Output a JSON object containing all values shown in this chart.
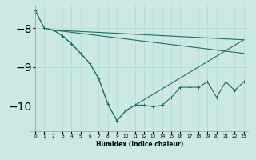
{
  "xlabel": "Humidex (Indice chaleur)",
  "bg_color": "#cce8e5",
  "line_color": "#1a7068",
  "grid_color": "#b0d8d4",
  "xlim": [
    -0.5,
    23.5
  ],
  "ylim": [
    -10.65,
    -7.4
  ],
  "yticks": [
    -10,
    -9,
    -8
  ],
  "xticks": [
    0,
    1,
    2,
    3,
    4,
    5,
    6,
    7,
    8,
    9,
    10,
    11,
    12,
    13,
    14,
    15,
    16,
    17,
    18,
    19,
    20,
    21,
    22,
    23
  ],
  "line1_x": [
    0,
    1,
    2,
    3,
    4,
    5,
    6,
    7,
    8,
    9,
    10,
    11,
    12,
    13,
    14,
    15,
    16,
    17,
    18,
    19,
    20,
    21,
    22,
    23
  ],
  "line1_y": [
    -7.55,
    -8.0,
    -8.05,
    -8.2,
    -8.4,
    -8.65,
    -8.9,
    -9.3,
    -9.95,
    -10.38,
    -10.12,
    -9.98,
    -9.98,
    -10.02,
    -9.98,
    -9.78,
    -9.52,
    -9.52,
    -9.52,
    -9.38,
    -9.78,
    -9.38,
    -9.6,
    -9.38
  ],
  "line2_x": [
    2,
    23
  ],
  "line2_y": [
    -8.05,
    -8.3
  ],
  "line3_x": [
    2,
    23
  ],
  "line3_y": [
    -8.05,
    -8.65
  ],
  "line4_x": [
    0,
    1,
    2,
    3,
    4,
    5,
    6,
    7,
    8,
    9,
    10,
    23
  ],
  "line4_y": [
    -7.55,
    -8.0,
    -8.05,
    -8.2,
    -8.4,
    -8.65,
    -8.9,
    -9.3,
    -9.95,
    -10.38,
    -10.12,
    -8.3
  ]
}
